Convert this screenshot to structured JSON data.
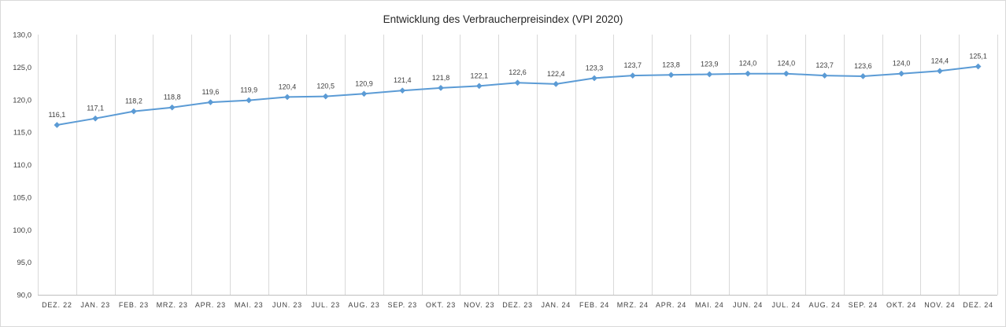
{
  "colors": {
    "series": "#5b9bd5",
    "grid": "#d9d9d9",
    "text": "#404040"
  },
  "chart_data": {
    "type": "line",
    "title": "Entwicklung des Verbraucherpreisindex (VPI 2020)",
    "xlabel": "",
    "ylabel": "",
    "ylim": [
      90.0,
      130.0
    ],
    "y_ticks": [
      90.0,
      95.0,
      100.0,
      105.0,
      110.0,
      115.0,
      120.0,
      125.0,
      130.0
    ],
    "y_tick_labels": [
      "90,0",
      "95,0",
      "100,0",
      "105,0",
      "110,0",
      "115,0",
      "120,0",
      "125,0",
      "130,0"
    ],
    "grid": "vertical",
    "marker": "diamond",
    "categories": [
      "DEZ. 22",
      "JAN. 23",
      "FEB. 23",
      "MRZ. 23",
      "APR. 23",
      "MAI. 23",
      "JUN. 23",
      "JUL. 23",
      "AUG. 23",
      "SEP. 23",
      "OKT. 23",
      "NOV. 23",
      "DEZ. 23",
      "JAN. 24",
      "FEB. 24",
      "MRZ. 24",
      "APR. 24",
      "MAI. 24",
      "JUN. 24",
      "JUL. 24",
      "AUG. 24",
      "SEP. 24",
      "OKT. 24",
      "NOV. 24",
      "DEZ. 24"
    ],
    "series": [
      {
        "values": [
          116.1,
          117.1,
          118.2,
          118.8,
          119.6,
          119.9,
          120.4,
          120.5,
          120.9,
          121.4,
          121.8,
          122.1,
          122.6,
          122.4,
          123.3,
          123.7,
          123.8,
          123.9,
          124.0,
          124.0,
          123.7,
          123.6,
          124.0,
          124.4,
          125.1
        ],
        "labels": [
          "116,1",
          "117,1",
          "118,2",
          "118,8",
          "119,6",
          "119,9",
          "120,4",
          "120,5",
          "120,9",
          "121,4",
          "121,8",
          "122,1",
          "122,6",
          "122,4",
          "123,3",
          "123,7",
          "123,8",
          "123,9",
          "124,0",
          "124,0",
          "123,7",
          "123,6",
          "124,0",
          "124,4",
          "125,1"
        ]
      }
    ]
  }
}
